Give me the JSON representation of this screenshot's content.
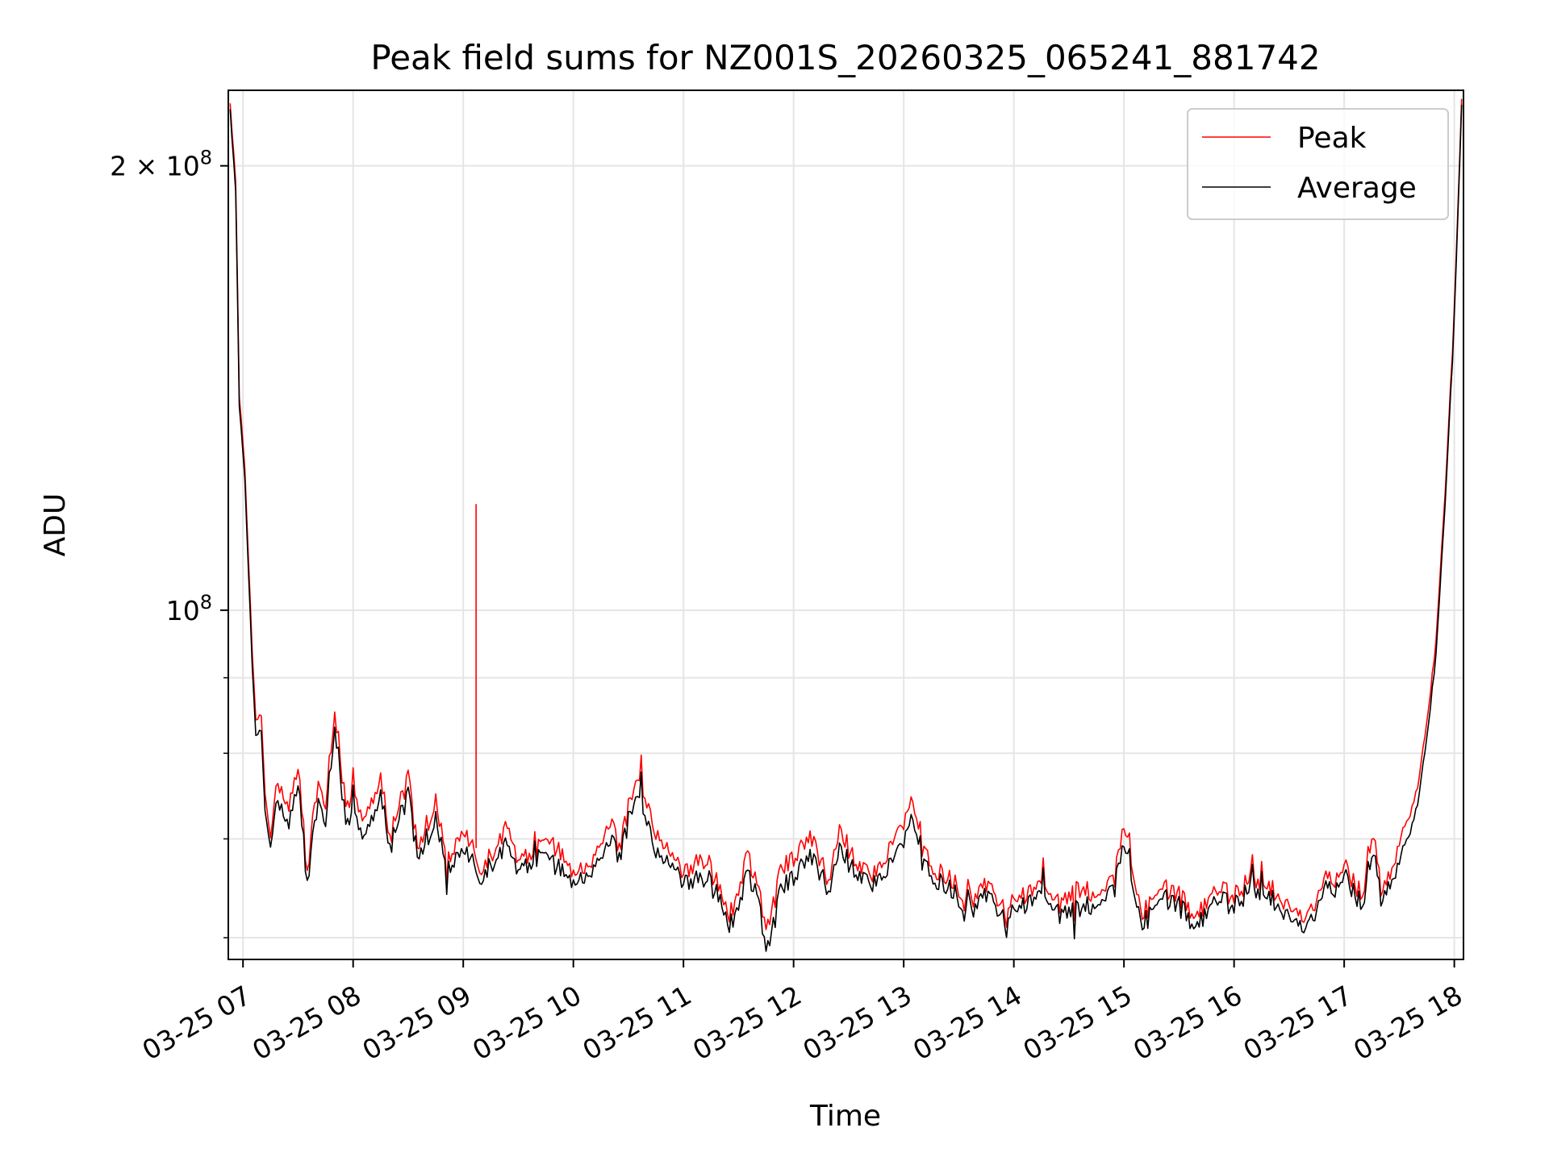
{
  "chart_data": {
    "type": "line",
    "title": "Peak field sums for NZ001S_20260325_065241_881742",
    "xlabel": "Time",
    "ylabel": "ADU",
    "y_scale": "log",
    "ylim": [
      58000000,
      225000000
    ],
    "xlim": [
      "2026-03-25 06:52",
      "2026-03-25 18:05"
    ],
    "grid": true,
    "legend_position": "top-right",
    "x_ticks": [
      "03-25 07",
      "03-25 08",
      "03-25 09",
      "03-25 10",
      "03-25 11",
      "03-25 12",
      "03-25 13",
      "03-25 14",
      "03-25 15",
      "03-25 16",
      "03-25 17",
      "03-25 18"
    ],
    "x_tick_times": [
      "2026-03-25 07:00",
      "2026-03-25 08:00",
      "2026-03-25 09:00",
      "2026-03-25 10:00",
      "2026-03-25 11:00",
      "2026-03-25 12:00",
      "2026-03-25 13:00",
      "2026-03-25 14:00",
      "2026-03-25 15:00",
      "2026-03-25 16:00",
      "2026-03-25 17:00",
      "2026-03-25 18:00"
    ],
    "y_ticks": [
      {
        "value": 100000000,
        "label": "10",
        "exp": "8"
      },
      {
        "value": 200000000,
        "label": "2 × 10",
        "exp": "8"
      }
    ],
    "y_minor_ticks": [
      60000000,
      70000000,
      80000000,
      90000000
    ],
    "x": [
      "2026-03-25 06:53",
      "2026-03-25 06:56",
      "2026-03-25 06:58",
      "2026-03-25 07:01",
      "2026-03-25 07:03",
      "2026-03-25 07:05",
      "2026-03-25 07:07",
      "2026-03-25 07:10",
      "2026-03-25 07:12",
      "2026-03-25 07:15",
      "2026-03-25 07:18",
      "2026-03-25 07:25",
      "2026-03-25 07:30",
      "2026-03-25 07:35",
      "2026-03-25 07:38",
      "2026-03-25 07:41",
      "2026-03-25 07:45",
      "2026-03-25 07:50",
      "2026-03-25 07:53",
      "2026-03-25 07:56",
      "2026-03-25 07:59",
      "2026-03-25 08:05",
      "2026-03-25 08:15",
      "2026-03-25 08:20",
      "2026-03-25 08:30",
      "2026-03-25 08:35",
      "2026-03-25 08:45",
      "2026-03-25 08:52",
      "2026-03-25 09:00",
      "2026-03-25 09:10",
      "2026-03-25 09:15",
      "2026-03-25 09:25",
      "2026-03-25 09:30",
      "2026-03-25 09:40",
      "2026-03-25 09:50",
      "2026-03-25 10:00",
      "2026-03-25 10:10",
      "2026-03-25 10:20",
      "2026-03-25 10:25",
      "2026-03-25 10:35",
      "2026-03-25 10:45",
      "2026-03-25 10:55",
      "2026-03-25 11:00",
      "2026-03-25 11:10",
      "2026-03-25 11:20",
      "2026-03-25 11:25",
      "2026-03-25 11:35",
      "2026-03-25 11:40",
      "2026-03-25 11:45",
      "2026-03-25 11:52",
      "2026-03-25 12:00",
      "2026-03-25 12:10",
      "2026-03-25 12:18",
      "2026-03-25 12:25",
      "2026-03-25 12:35",
      "2026-03-25 12:45",
      "2026-03-25 12:55",
      "2026-03-25 13:05",
      "2026-03-25 13:15",
      "2026-03-25 13:25",
      "2026-03-25 13:35",
      "2026-03-25 13:45",
      "2026-03-25 13:55",
      "2026-03-25 14:05",
      "2026-03-25 14:15",
      "2026-03-25 14:25",
      "2026-03-25 14:35",
      "2026-03-25 14:45",
      "2026-03-25 14:55",
      "2026-03-25 15:00",
      "2026-03-25 15:10",
      "2026-03-25 15:20",
      "2026-03-25 15:30",
      "2026-03-25 15:40",
      "2026-03-25 15:50",
      "2026-03-25 16:00",
      "2026-03-25 16:10",
      "2026-03-25 16:20",
      "2026-03-25 16:30",
      "2026-03-25 16:40",
      "2026-03-25 16:50",
      "2026-03-25 16:55",
      "2026-03-25 17:00",
      "2026-03-25 17:10",
      "2026-03-25 17:15",
      "2026-03-25 17:20",
      "2026-03-25 17:25",
      "2026-03-25 17:30",
      "2026-03-25 17:35",
      "2026-03-25 17:40",
      "2026-03-25 17:45",
      "2026-03-25 17:50",
      "2026-03-25 17:55",
      "2026-03-25 18:00",
      "2026-03-25 18:04"
    ],
    "series": [
      {
        "name": "Peak",
        "color": "#ff0000",
        "values": [
          220000000,
          195000000,
          140000000,
          125000000,
          108000000,
          94000000,
          84000000,
          85000000,
          75000000,
          70000000,
          76000000,
          74000000,
          79000000,
          66000000,
          72000000,
          76000000,
          74000000,
          86000000,
          80000000,
          73000000,
          75000000,
          72000000,
          77000000,
          70000000,
          77000000,
          69000000,
          74000000,
          68000000,
          71000000,
          67000000,
          68000000,
          72000000,
          67000000,
          69000000,
          70000000,
          66000000,
          67000000,
          72000000,
          69000000,
          78000000,
          71000000,
          68000000,
          66000000,
          68000000,
          65000000,
          62000000,
          68000000,
          66000000,
          60000000,
          67000000,
          68000000,
          70000000,
          65000000,
          71000000,
          67000000,
          66000000,
          70000000,
          74000000,
          67000000,
          66000000,
          63000000,
          65000000,
          63000000,
          64000000,
          65000000,
          63000000,
          65000000,
          64000000,
          66000000,
          72000000,
          62000000,
          65000000,
          64000000,
          62000000,
          65000000,
          64000000,
          66000000,
          65000000,
          63000000,
          62000000,
          66000000,
          65000000,
          67000000,
          64000000,
          71000000,
          65000000,
          66000000,
          70000000,
          72000000,
          76000000,
          84000000,
          95000000,
          120000000,
          160000000,
          222000000
        ]
      },
      {
        "name": "Average",
        "color": "#000000",
        "values": [
          218000000,
          192000000,
          138000000,
          123000000,
          106000000,
          92000000,
          82000000,
          83000000,
          73000000,
          69000000,
          74000000,
          72000000,
          77000000,
          65000000,
          70000000,
          74000000,
          72000000,
          84000000,
          78000000,
          71000000,
          73000000,
          70000000,
          75000000,
          69000000,
          75000000,
          68000000,
          72000000,
          67000000,
          69000000,
          66000000,
          67000000,
          70000000,
          66000000,
          68000000,
          68000000,
          65000000,
          66000000,
          70000000,
          68000000,
          76000000,
          69000000,
          67000000,
          65000000,
          66000000,
          64000000,
          61000000,
          66000000,
          65000000,
          58000000,
          65000000,
          66000000,
          68000000,
          64000000,
          69000000,
          66000000,
          65000000,
          68000000,
          72000000,
          66000000,
          65000000,
          62000000,
          64000000,
          62000000,
          63000000,
          64000000,
          62000000,
          63000000,
          63000000,
          65000000,
          70000000,
          61000000,
          64000000,
          63000000,
          61000000,
          64000000,
          63000000,
          65000000,
          64000000,
          62000000,
          61000000,
          65000000,
          64000000,
          66000000,
          63000000,
          69000000,
          64000000,
          65000000,
          68000000,
          70000000,
          74000000,
          82000000,
          93000000,
          118000000,
          158000000,
          220000000
        ]
      }
    ],
    "spikes": [
      {
        "series": "Peak",
        "x": "2026-03-25 09:07",
        "y": 118000000
      }
    ],
    "legend": [
      {
        "label": "Peak",
        "color": "#ff0000"
      },
      {
        "label": "Average",
        "color": "#000000"
      }
    ]
  }
}
